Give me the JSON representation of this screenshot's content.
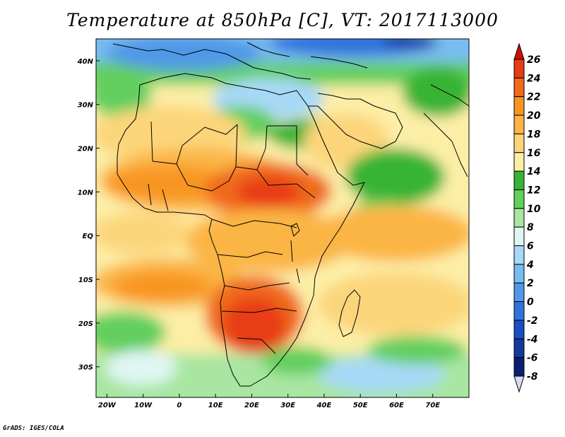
{
  "title": "Temperature at 850hPa [C], VT: 2017113000",
  "credit": "GrADS: IGES/COLA",
  "map": {
    "projection": "latlon",
    "lon_range": [
      -23,
      80
    ],
    "lat_range": [
      -37,
      45
    ],
    "x_ticks": [
      "20W",
      "10W",
      "0",
      "10E",
      "20E",
      "30E",
      "40E",
      "50E",
      "60E",
      "70E"
    ],
    "y_ticks": [
      "40N",
      "30N",
      "20N",
      "10N",
      "EQ",
      "10S",
      "20S",
      "30S"
    ],
    "field": "Temperature at 850hPa",
    "units": "C"
  },
  "colorbar": {
    "levels": [
      "26",
      "24",
      "22",
      "20",
      "18",
      "16",
      "14",
      "12",
      "10",
      "8",
      "6",
      "4",
      "2",
      "0",
      "-2",
      "-4",
      "-6",
      "-8"
    ],
    "colors": [
      "#cc1100",
      "#e83d12",
      "#f06a1a",
      "#f89522",
      "#fbb545",
      "#fcd57a",
      "#fdeea6",
      "#37b436",
      "#62cf5e",
      "#a8e6a1",
      "#dff6f3",
      "#a7d9f6",
      "#78bcf0",
      "#5198e8",
      "#2f74dc",
      "#1a4fc2",
      "#123a9c",
      "#0a1f70",
      "#dcd9f8"
    ]
  }
}
